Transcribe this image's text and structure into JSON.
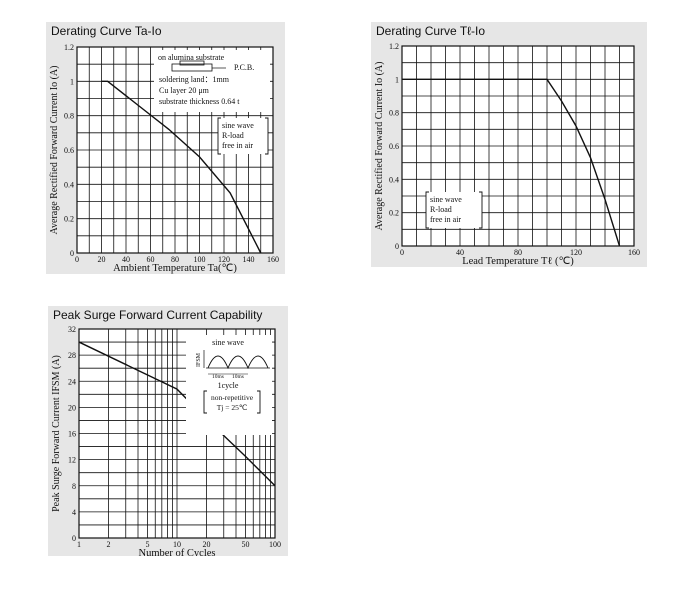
{
  "colors": {
    "panel_bg": "#e6e6e6",
    "plot_bg": "#ffffff",
    "ink": "#111111"
  },
  "panels": [
    {
      "title": "Derating Curve Ta-Io",
      "chart_data": {
        "type": "line",
        "xlabel": "Ambient Temperature Ta(℃)",
        "ylabel": "Average Rectified Forward Current Io (A)",
        "xlim": [
          0,
          160
        ],
        "ylim": [
          0,
          1.2
        ],
        "x_ticks": [
          0,
          20,
          40,
          60,
          80,
          100,
          120,
          140,
          160
        ],
        "y_ticks": [
          0,
          0.2,
          0.4,
          0.6,
          0.8,
          1,
          1.2
        ],
        "x_tick_labels": [
          "0",
          "20",
          "40",
          "60",
          "80",
          "100",
          "120",
          "140",
          "160"
        ],
        "y_tick_labels": [
          "0",
          "0.2",
          "0.4",
          "0.6",
          "0.8",
          "1",
          "1.2"
        ],
        "grid": true,
        "series": [
          {
            "x": [
              20,
              25,
              50,
              75,
              100,
              125,
              150
            ],
            "y": [
              1,
              1,
              0.86,
              0.72,
              0.56,
              0.35,
              0
            ]
          }
        ],
        "annotations": [
          "on alumina substrate",
          "P.C.B.",
          "soldering land：1mm",
          "Cu layer 20 μm",
          "substrate thickness 0.64 t",
          "sine wave",
          "R-load",
          "free in air"
        ]
      }
    },
    {
      "title": "Derating Curve Tℓ-Io",
      "chart_data": {
        "type": "line",
        "xlabel": "Lead Temperature Tℓ (℃)",
        "ylabel": "Average Rectified Forward Current Io (A)",
        "xlim": [
          0,
          160
        ],
        "ylim": [
          0,
          1.2
        ],
        "x_ticks": [
          0,
          40,
          80,
          120,
          160
        ],
        "y_ticks": [
          0,
          0.2,
          0.4,
          0.6,
          0.8,
          1,
          1.2
        ],
        "x_tick_labels": [
          "0",
          "40",
          "80",
          "120",
          "160"
        ],
        "y_tick_labels": [
          "0",
          "0.2",
          "0.4",
          "0.6",
          "0.8",
          "1",
          "1.2"
        ],
        "grid": true,
        "series": [
          {
            "x": [
              0,
              100,
              110,
              120,
              130,
              140,
              150
            ],
            "y": [
              1,
              1,
              0.87,
              0.72,
              0.53,
              0.28,
              0
            ]
          }
        ],
        "annotations": [
          "sine wave",
          "R-load",
          "free in air"
        ]
      }
    },
    {
      "title": "Peak Surge Forward Current Capability",
      "chart_data": {
        "type": "line",
        "x_scale": "log",
        "xlabel": "Number of Cycles",
        "ylabel": "Peak Surge Forward Current IFSM (A)",
        "xlim": [
          1,
          100
        ],
        "ylim": [
          0,
          32
        ],
        "x_ticks": [
          1,
          2,
          5,
          10,
          20,
          50,
          100
        ],
        "y_ticks": [
          0,
          4,
          8,
          12,
          16,
          20,
          24,
          28,
          32
        ],
        "x_tick_labels": [
          "1",
          "2",
          "5",
          "10",
          "20",
          "50",
          "100"
        ],
        "y_tick_labels": [
          "0",
          "4",
          "8",
          "12",
          "16",
          "20",
          "24",
          "28",
          "32"
        ],
        "grid": true,
        "series": [
          {
            "x": [
              1,
              10,
              20,
              50,
              100
            ],
            "y": [
              30,
              22.8,
              18.2,
              12.5,
              8
            ]
          }
        ],
        "annotations": [
          "sine wave",
          "IFSM",
          "10ms",
          "10ms",
          "1cycle",
          "non-repetitive",
          "Tj = 25℃"
        ]
      }
    }
  ]
}
